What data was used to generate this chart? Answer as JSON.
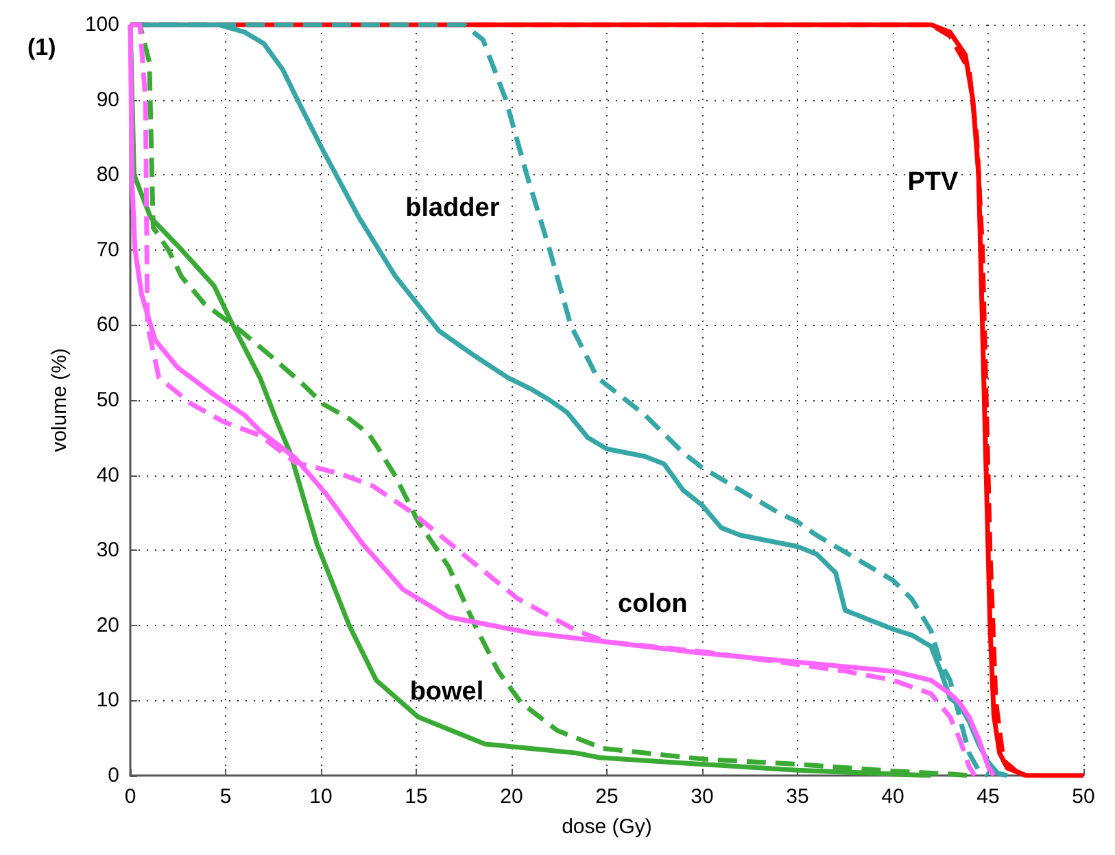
{
  "chart_data": {
    "type": "line",
    "xlabel": "dose (Gy)",
    "ylabel": "volume (%)",
    "xlim": [
      0,
      50
    ],
    "xticks": [
      0,
      5,
      10,
      15,
      20,
      25,
      30,
      35,
      40,
      45,
      50
    ],
    "ylim": [
      0,
      100
    ],
    "yticks": [
      0,
      10,
      20,
      30,
      40,
      50,
      60,
      70,
      80,
      90,
      100
    ],
    "grid": true,
    "marker": "none",
    "annotations": [
      "(1)",
      "PTV",
      "bladder",
      "colon",
      "bowel"
    ],
    "series": [
      {
        "color": "#ff0000",
        "line_style": "solid",
        "x": [
          0,
          42,
          43,
          43.8,
          44.2,
          44.5,
          44.7,
          44.9,
          45.1,
          45.3,
          45.6,
          46,
          47,
          50
        ],
        "values": [
          100,
          100,
          99,
          96,
          90,
          80,
          60,
          40,
          20,
          8,
          3,
          1,
          0,
          0
        ]
      },
      {
        "color": "#ff0000",
        "line_style": "dashed",
        "x": [
          0,
          42,
          43,
          44,
          44.4,
          44.7,
          44.9,
          45.1,
          45.4,
          45.8,
          46.5,
          47
        ],
        "values": [
          100,
          100,
          98.5,
          94,
          85,
          70,
          50,
          30,
          10,
          2,
          0.5,
          0
        ]
      },
      {
        "color": "#36a6a6",
        "line_style": "solid",
        "x": [
          0,
          4.6,
          6,
          7,
          8,
          8.65,
          10.1,
          12,
          13.9,
          16.2,
          18,
          19.8,
          21,
          22,
          22.9,
          24,
          25,
          27,
          28,
          29,
          30,
          31,
          32,
          33,
          34,
          35,
          36,
          37,
          37.5,
          38,
          39,
          40,
          41,
          42,
          42.5,
          43,
          43.5,
          44,
          44.5,
          45,
          45.5,
          46
        ],
        "values": [
          100,
          100,
          99,
          97.5,
          94,
          90.6,
          83.3,
          74.3,
          66.5,
          59.2,
          56,
          53,
          51.5,
          50,
          48.4,
          45,
          43.5,
          42.5,
          41.5,
          38,
          36,
          33,
          32,
          31.5,
          31,
          30.5,
          29.5,
          27,
          22,
          21.5,
          20.5,
          19.5,
          18.7,
          17.2,
          14,
          10.3,
          9.4,
          7.2,
          4.2,
          1.8,
          0.3,
          0
        ]
      },
      {
        "color": "#36a6a6",
        "line_style": "dashed",
        "x": [
          0,
          17.5,
          18.5,
          19.7,
          20.8,
          22,
          23.1,
          24.5,
          26,
          27,
          28,
          29,
          30,
          31,
          32,
          33,
          34,
          35,
          36,
          37,
          38,
          39,
          40,
          41,
          42,
          42.5,
          43,
          43.5,
          44,
          44.5,
          45
        ],
        "values": [
          100,
          100,
          98,
          90,
          80,
          70,
          60,
          53,
          50,
          48,
          45.5,
          43,
          41,
          39.5,
          38,
          36.5,
          35,
          33.8,
          32,
          30.5,
          29,
          27.5,
          26,
          23.5,
          19.3,
          15,
          12.7,
          7.8,
          3,
          0.7,
          0
        ]
      },
      {
        "color": "#3aaa35",
        "line_style": "solid",
        "x": [
          0,
          0.2,
          1.07,
          2.7,
          4.4,
          5.3,
          6.8,
          7.7,
          8.4,
          9.8,
          11.5,
          12.9,
          15.1,
          18.6,
          23.4,
          24.6,
          30,
          35,
          40,
          42
        ],
        "values": [
          100,
          80,
          74.3,
          70,
          65.2,
          60.4,
          53,
          47.1,
          42.9,
          30.8,
          19.9,
          12.7,
          7.8,
          4.2,
          3,
          2.4,
          1.5,
          0.7,
          0.2,
          0
        ]
      },
      {
        "color": "#3aaa35",
        "line_style": "dashed",
        "x": [
          0,
          0.5,
          1,
          1.2,
          2,
          2.7,
          3.9,
          5.8,
          7.5,
          9.1,
          10.1,
          11.5,
          12.5,
          12.9,
          13.9,
          15.1,
          16.7,
          18.1,
          19.3,
          20.5,
          22.4,
          24.8,
          30,
          35,
          40,
          43,
          44
        ],
        "values": [
          100,
          100,
          95,
          73,
          70,
          66.4,
          62.8,
          59.2,
          55.6,
          52,
          49.5,
          47.5,
          45.5,
          44,
          39.9,
          33.8,
          27.8,
          19.9,
          13.9,
          9.7,
          6,
          3.6,
          2.2,
          1.5,
          0.6,
          0.2,
          0
        ]
      },
      {
        "color": "#ff66ff",
        "line_style": "solid",
        "x": [
          0,
          0.1,
          0.25,
          0.6,
          1.3,
          2.5,
          4.4,
          6,
          6.8,
          8.65,
          10.3,
          12.2,
          14.3,
          16.7,
          21,
          25,
          30,
          35,
          40,
          42,
          43,
          43.5,
          44,
          44.5,
          45,
          45.3
        ],
        "values": [
          100,
          78.5,
          70,
          64,
          58,
          54.3,
          50.7,
          48,
          45.9,
          42.3,
          37.4,
          30.8,
          24.8,
          21.1,
          19,
          17.8,
          16.3,
          15.1,
          13.9,
          12.7,
          10.9,
          9.7,
          7.8,
          4.9,
          1.2,
          0
        ]
      },
      {
        "color": "#ff66ff",
        "line_style": "dashed",
        "x": [
          0,
          0.5,
          0.8,
          0.9,
          1.5,
          3.2,
          4.9,
          6.8,
          8.65,
          11,
          12.7,
          14.8,
          17.4,
          20.3,
          23.4,
          25,
          30,
          35,
          37.5,
          40,
          42,
          43,
          43.5,
          44,
          44.3
        ],
        "values": [
          100,
          100,
          90,
          60,
          53,
          49.5,
          47.1,
          45.3,
          41.7,
          40.2,
          38.6,
          35,
          29.6,
          23.6,
          19.3,
          17.8,
          16.5,
          14.8,
          13.9,
          12.7,
          10.9,
          7.8,
          4.9,
          1.2,
          0
        ]
      }
    ]
  }
}
